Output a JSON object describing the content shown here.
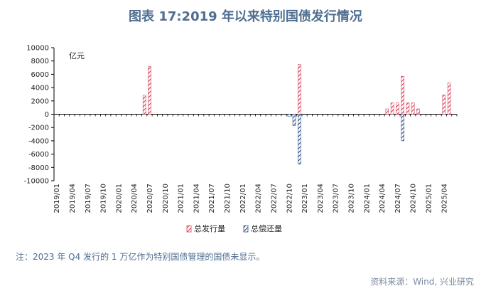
{
  "figure": {
    "title": "图表 17:2019 年以来特别国债发行情况",
    "note": "注：2023 年 Q4 发行的 1 万亿作为特别国债管理的国债未显示。",
    "source": "资料来源：Wind, 兴业研究"
  },
  "colors": {
    "issue": "#d9485f",
    "repay": "#3a5a8c",
    "axis": "#000000"
  },
  "chart_data": {
    "type": "bar",
    "unit_label": "亿元",
    "ylim": [
      -10000,
      10000
    ],
    "yticks": [
      "10000",
      "8000",
      "6000",
      "4000",
      "2000",
      "0",
      "-2000",
      "-4000",
      "-6000",
      "-8000",
      "-10000"
    ],
    "x_tick_labels": [
      "2019/01",
      "2019/04",
      "2019/07",
      "2019/10",
      "2020/01",
      "2020/04",
      "2020/07",
      "2020/10",
      "2021/01",
      "2021/04",
      "2021/07",
      "2021/10",
      "2022/01",
      "2022/04",
      "2022/07",
      "2022/10",
      "2023/01",
      "2023/04",
      "2023/07",
      "2023/10",
      "2024/01",
      "2024/04",
      "2024/07",
      "2024/10",
      "2025/01",
      "2025/04"
    ],
    "x_start": "2019/01",
    "x_end": "2025/06",
    "grid": false,
    "legend_position": "bottom-center",
    "series": [
      {
        "name": "总发行量",
        "points": [
          {
            "x": "2020/06",
            "value": 2850
          },
          {
            "x": "2020/07",
            "value": 7150
          },
          {
            "x": "2022/12",
            "value": 7500
          },
          {
            "x": "2024/05",
            "value": 800
          },
          {
            "x": "2024/06",
            "value": 1700
          },
          {
            "x": "2024/07",
            "value": 1700
          },
          {
            "x": "2024/08",
            "value": 5700
          },
          {
            "x": "2024/09",
            "value": 1700
          },
          {
            "x": "2024/10",
            "value": 1700
          },
          {
            "x": "2024/11",
            "value": 800
          },
          {
            "x": "2025/04",
            "value": 2900
          },
          {
            "x": "2025/05",
            "value": 4700
          }
        ]
      },
      {
        "name": "总偿还量",
        "points": [
          {
            "x": "2022/10",
            "value": -300
          },
          {
            "x": "2022/11",
            "value": -1700
          },
          {
            "x": "2022/12",
            "value": -7500
          },
          {
            "x": "2024/08",
            "value": -4000
          }
        ]
      }
    ]
  }
}
